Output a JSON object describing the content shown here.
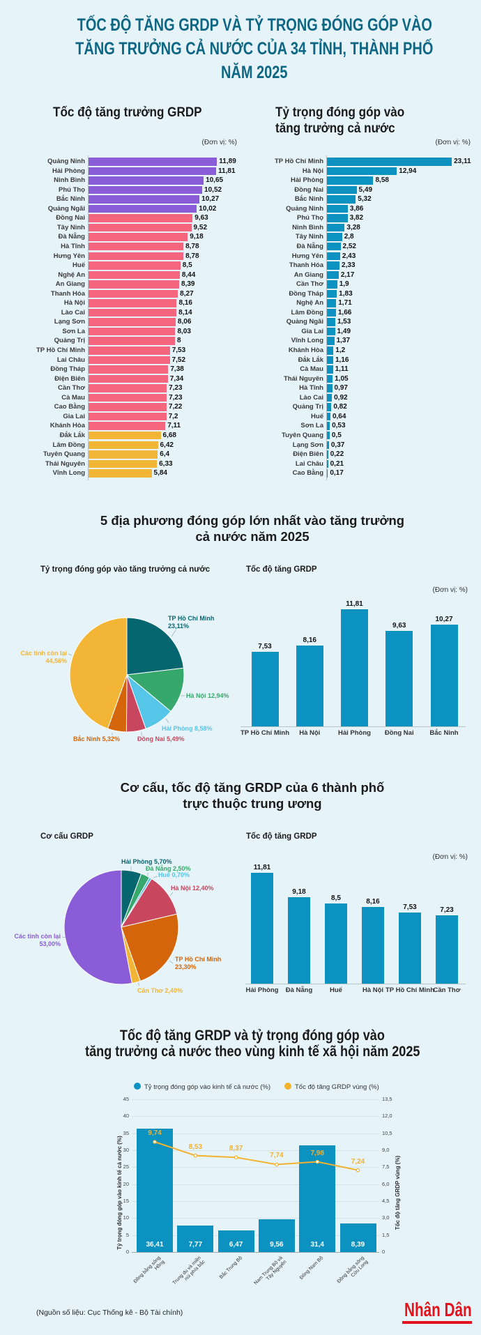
{
  "header": {
    "title_lines": [
      "TỐC ĐỘ TĂNG GRDP VÀ TỶ TRỌNG ĐÓNG GÓP VÀO",
      "TĂNG TRƯỞNG CẢ NƯỚC CỦA 34 TỈNH, THÀNH PHỐ",
      "NĂM 2025"
    ]
  },
  "section1": {
    "left_title": "Tốc độ tăng trưởng GRDP",
    "right_title_lines": [
      "Tỷ trọng đóng góp vào",
      "tăng trưởng cả nước"
    ],
    "unit_note": "(Đơn vị: %)"
  },
  "section2": {
    "heading_lines": [
      "5 địa phương đóng góp lớn nhất vào tăng trưởng",
      "cả nước năm 2025"
    ],
    "left_title": "Tỷ trọng đóng góp vào tăng trưởng cả nước",
    "right_title": "Tốc độ tăng GRDP",
    "unit_note": "(Đơn vị: %)"
  },
  "section3": {
    "heading_lines": [
      "Cơ cấu, tốc độ tăng GRDP của 6 thành phố",
      "trực thuộc trung ương"
    ],
    "left_title": "Cơ cấu GRDP",
    "right_title": "Tốc độ tăng GRDP",
    "unit_note": "(Đơn vị: %)"
  },
  "section4": {
    "heading_lines": [
      "Tốc độ tăng GRDP và tỷ trọng đóng góp vào",
      "tăng trưởng cả nước theo vùng kinh tế xã hội năm 2025"
    ]
  },
  "footer": {
    "source": "(Nguồn số liệu: Cục Thống kê - Bộ Tài chính)",
    "logo": "Nhân Dân"
  },
  "colors": {
    "background": "#e6f3f8",
    "title": "#0d6784",
    "purple": "#8b5cd8",
    "pink": "#f5657d",
    "yellow": "#f2b535",
    "blue": "#0b92c1",
    "logo_red": "#e3121b"
  },
  "chart_data": [
    {
      "type": "bar",
      "orientation": "horizontal",
      "title": "Tốc độ tăng trưởng GRDP",
      "ylabel": "(Đơn vị: %)",
      "categories": [
        "Quảng Ninh",
        "Hải Phòng",
        "Ninh Bình",
        "Phú Thọ",
        "Bắc Ninh",
        "Quảng Ngãi",
        "Đồng Nai",
        "Tây Ninh",
        "Đà Nẵng",
        "Hà Tĩnh",
        "Hưng Yên",
        "Huế",
        "Nghệ An",
        "An Giang",
        "Thanh Hóa",
        "Hà Nội",
        "Lào Cai",
        "Lạng Sơn",
        "Sơn La",
        "Quảng Trị",
        "TP Hồ Chí Minh",
        "Lai Châu",
        "Đồng Tháp",
        "Điện Biên",
        "Cần Thơ",
        "Cà Mau",
        "Cao Bằng",
        "Gia Lai",
        "Khánh Hòa",
        "Đắk Lắk",
        "Lâm Đồng",
        "Tuyên Quang",
        "Thái Nguyên",
        "Vĩnh Long"
      ],
      "values": [
        11.89,
        11.81,
        10.65,
        10.52,
        10.27,
        10.02,
        9.63,
        9.52,
        9.18,
        8.78,
        8.78,
        8.5,
        8.44,
        8.39,
        8.27,
        8.16,
        8.14,
        8.06,
        8.03,
        8,
        7.53,
        7.52,
        7.38,
        7.34,
        7.23,
        7.23,
        7.22,
        7.2,
        7.11,
        6.68,
        6.42,
        6.4,
        6.33,
        5.84
      ],
      "color_groups": [
        {
          "from": 0,
          "to": 5,
          "color": "#8b5cd8"
        },
        {
          "from": 6,
          "to": 28,
          "color": "#f5657d"
        },
        {
          "from": 29,
          "to": 33,
          "color": "#f2b535"
        }
      ]
    },
    {
      "type": "bar",
      "orientation": "horizontal",
      "title": "Tỷ trọng đóng góp vào tăng trưởng cả nước",
      "ylabel": "(Đơn vị: %)",
      "categories": [
        "TP Hồ Chí Minh",
        "Hà Nội",
        "Hải Phòng",
        "Đồng Nai",
        "Bắc Ninh",
        "Quảng Ninh",
        "Phú Thọ",
        "Ninh Bình",
        "Tây Ninh",
        "Đà Nẵng",
        "Hưng Yên",
        "Thanh Hóa",
        "An Giang",
        "Cần Thơ",
        "Đồng Tháp",
        "Nghệ An",
        "Lâm Đồng",
        "Quảng Ngãi",
        "Gia Lai",
        "Vĩnh Long",
        "Khánh Hòa",
        "Đắk Lắk",
        "Cà Mau",
        "Thái Nguyên",
        "Hà Tĩnh",
        "Lào Cai",
        "Quảng Trị",
        "Huế",
        "Sơn La",
        "Tuyên Quang",
        "Lạng Sơn",
        "Điện Biên",
        "Lai Châu",
        "Cao Bằng"
      ],
      "values": [
        23.11,
        12.94,
        8.58,
        5.49,
        5.32,
        3.86,
        3.82,
        3.28,
        2.8,
        2.52,
        2.43,
        2.33,
        2.17,
        1.9,
        1.83,
        1.71,
        1.66,
        1.53,
        1.49,
        1.37,
        1.2,
        1.16,
        1.11,
        1.05,
        0.97,
        0.92,
        0.82,
        0.64,
        0.53,
        0.5,
        0.37,
        0.22,
        0.21,
        0.17
      ],
      "color": "#0b92c1"
    },
    {
      "type": "pie",
      "title": "Tỷ trọng đóng góp vào tăng trưởng cả nước",
      "slices": [
        {
          "label": "TP Hồ Chí Minh",
          "value": 23.11,
          "pct_label": "23,11%",
          "color": "#05666f"
        },
        {
          "label": "Hà Nội",
          "value": 12.94,
          "pct_label": "12,94%",
          "color": "#37a86b"
        },
        {
          "label": "Hải Phòng",
          "value": 8.58,
          "pct_label": "8,58%",
          "color": "#55c5e8"
        },
        {
          "label": "Đồng Nai",
          "value": 5.49,
          "pct_label": "5,49%",
          "color": "#c8475e"
        },
        {
          "label": "Bắc Ninh",
          "value": 5.32,
          "pct_label": "5,32%",
          "color": "#d4650b"
        },
        {
          "label": "Các tỉnh còn lại",
          "value": 44.56,
          "pct_label": "44,56%",
          "color": "#f2b535"
        }
      ]
    },
    {
      "type": "bar",
      "orientation": "vertical",
      "title": "Tốc độ tăng GRDP",
      "ylabel": "(Đơn vị: %)",
      "categories": [
        "TP Hồ Chí Minh",
        "Hà Nội",
        "Hải Phòng",
        "Đồng Nai",
        "Bắc Ninh"
      ],
      "values": [
        7.53,
        8.16,
        11.81,
        9.63,
        10.27
      ],
      "color": "#0b92c1"
    },
    {
      "type": "pie",
      "title": "Cơ cấu GRDP",
      "slices": [
        {
          "label": "Hải Phòng",
          "value": 5.7,
          "pct_label": "5,70%",
          "color": "#05666f"
        },
        {
          "label": "Đà Nẵng",
          "value": 2.5,
          "pct_label": "2,50%",
          "color": "#37a86b"
        },
        {
          "label": "Huế",
          "value": 0.7,
          "pct_label": "0,70%",
          "color": "#55c5e8"
        },
        {
          "label": "Hà Nội",
          "value": 12.4,
          "pct_label": "12,40%",
          "color": "#c8475e"
        },
        {
          "label": "TP Hồ Chí Minh",
          "value": 23.3,
          "pct_label": "23,30%",
          "color": "#d4650b"
        },
        {
          "label": "Cần Thơ",
          "value": 2.4,
          "pct_label": "2,40%",
          "color": "#f2b535"
        },
        {
          "label": "Các tỉnh còn lại",
          "value": 53.0,
          "pct_label": "53,00%",
          "color": "#8b5cd8"
        }
      ]
    },
    {
      "type": "bar",
      "orientation": "vertical",
      "title": "Tốc độ tăng GRDP",
      "ylabel": "(Đơn vị: %)",
      "categories": [
        "Hải Phòng",
        "Đà Nẵng",
        "Huế",
        "Hà Nội",
        "TP Hồ Chí Minh",
        "Cần Thơ"
      ],
      "values": [
        11.81,
        9.18,
        8.5,
        8.16,
        7.53,
        7.23
      ],
      "color": "#0b92c1"
    },
    {
      "type": "bar+line",
      "title": "Tốc độ tăng GRDP và tỷ trọng đóng góp vào tăng trưởng cả nước theo vùng kinh tế xã hội năm 2025",
      "categories": [
        "Đồng bằng sông\nHồng",
        "Trung du và miền\nnúi phía bắc",
        "Bắc Trung Bộ",
        "Nam Trung Bộ và\nTây Nguyên",
        "Đông Nam Bộ",
        "Đồng bằng sông\nCửu Long"
      ],
      "series": [
        {
          "name": "Tỷ trọng đóng góp vào kinh tế cả nước (%)",
          "type": "bar",
          "axis": "left",
          "values": [
            36.41,
            7.77,
            6.47,
            9.56,
            31.4,
            8.39
          ],
          "color": "#0b92c1"
        },
        {
          "name": "Tốc độ tăng GRDP vùng (%)",
          "type": "line",
          "axis": "right",
          "values": [
            9.74,
            8.53,
            8.37,
            7.74,
            7.98,
            7.24
          ],
          "color": "#f2b22f"
        }
      ],
      "ylabel_left": "Tỷ trọng đóng góp vào kinh tế cả nước (%)",
      "ylabel_right": "Tốc độ tăng GRDP vùng (%)",
      "ylim_left": [
        0,
        45
      ],
      "ylim_right": [
        0,
        13.5
      ],
      "left_ticks": [
        "0",
        "5",
        "10",
        "15",
        "20",
        "25",
        "30",
        "35",
        "40",
        "45"
      ],
      "right_ticks": [
        "0",
        "1,5",
        "3,0",
        "4,5",
        "6,0",
        "7,5",
        "9,0",
        "10,5",
        "12,0",
        "13,5"
      ],
      "legend_position": "top",
      "grid": true
    }
  ]
}
